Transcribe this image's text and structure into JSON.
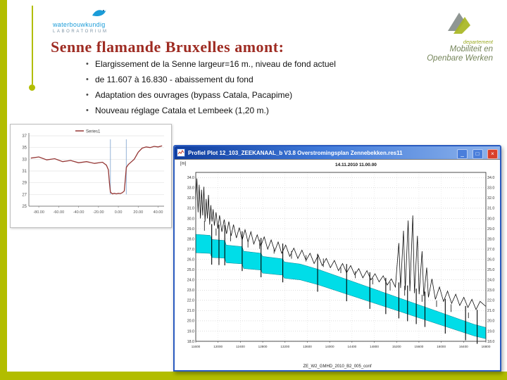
{
  "colors": {
    "accent": "#b2bd00",
    "title_color": "#9e2b22",
    "logo_blue": "#1b9cd8",
    "flem_green": "#9aaa1f",
    "flem_gray": "#75855a"
  },
  "slide": {
    "title": "Senne flamande Bruxelles amont:",
    "bullets": [
      "Elargissement de la Senne largeur=16 m., niveau de fond actuel",
      "de 11.607 à 16.830   - abaissement du fond",
      "Adaptation des ouvrages (bypass Catala, Pacapime)",
      "Nouveau réglage Catala et Lembeek (1,20 m.)"
    ]
  },
  "logos": {
    "left": {
      "line1": "waterbouwkundig",
      "line2": "LABORATORIUM"
    },
    "right": {
      "line1": "departement",
      "line2": "Mobiliteit en",
      "line3": "Openbare Werken"
    }
  },
  "window": {
    "title": "Profiel Plot   12_103_ZEEKANAAL_b V3.8 Overstromingsplan Zennebekken.res11",
    "datetime": "14.11.2010 11.00.00",
    "unit": "[m]",
    "status": "ZE_W2_GMHD_2010_B2_005_conf",
    "buttons": {
      "minimize": "_",
      "maximize": "□",
      "close": "×"
    }
  },
  "chart_data": [
    {
      "id": "cross_section",
      "type": "line",
      "title": "",
      "legend": [
        {
          "label": "Series1",
          "color": "#953735"
        }
      ],
      "xlim": [
        -90,
        46
      ],
      "ylim": [
        25,
        37
      ],
      "x_ticks": [
        -80,
        -60,
        -40,
        -20,
        0,
        20,
        40
      ],
      "x_tick_labels": [
        "-80.00",
        "-60.00",
        "-40.00",
        "-20.00",
        "0.00",
        "20.00",
        "40.00"
      ],
      "y_ticks": [
        25,
        27,
        29,
        31,
        33,
        35,
        37
      ],
      "guides": {
        "color": "#95b3d7",
        "x": [
          -8,
          8
        ],
        "y0": 27,
        "y1": 36.4
      },
      "series": [
        {
          "name": "Series1",
          "color": "#953735",
          "points": [
            [
              -88,
              33.2
            ],
            [
              -80,
              33.4
            ],
            [
              -72,
              32.9
            ],
            [
              -64,
              33.1
            ],
            [
              -56,
              32.6
            ],
            [
              -48,
              32.8
            ],
            [
              -40,
              32.4
            ],
            [
              -32,
              32.6
            ],
            [
              -24,
              32.3
            ],
            [
              -16,
              32.5
            ],
            [
              -12,
              32.0
            ],
            [
              -10,
              31.2
            ],
            [
              -9,
              29.0
            ],
            [
              -8,
              27.4
            ],
            [
              -6,
              27.1
            ],
            [
              -4,
              27.2
            ],
            [
              -2,
              27.1
            ],
            [
              0,
              27.2
            ],
            [
              2,
              27.15
            ],
            [
              4,
              27.3
            ],
            [
              6,
              27.6
            ],
            [
              7,
              29.5
            ],
            [
              8,
              31.6
            ],
            [
              10,
              32.1
            ],
            [
              12,
              32.4
            ],
            [
              16,
              33.0
            ],
            [
              20,
              34.2
            ],
            [
              24,
              34.9
            ],
            [
              28,
              35.1
            ],
            [
              32,
              35.0
            ],
            [
              36,
              35.2
            ],
            [
              40,
              35.1
            ],
            [
              44,
              35.3
            ]
          ]
        }
      ]
    },
    {
      "id": "long_profile",
      "type": "area+line",
      "ylim": [
        18,
        34.5
      ],
      "y_ticks": [
        34,
        33,
        32,
        31,
        30,
        29,
        28,
        27,
        26,
        25,
        24,
        23,
        22,
        21,
        20,
        19,
        18
      ],
      "y_tick_labels": [
        "34.0",
        "33.0",
        "32.0",
        "31.0",
        "30.0",
        "29.0",
        "28.0",
        "27.0",
        "26.0",
        "25.0",
        "24.0",
        "23.0",
        "22.0",
        "21.0",
        "20.0",
        "19.0",
        "18.0"
      ],
      "x_tick_labels": [
        "11600",
        "12000",
        "12400",
        "12800",
        "13200",
        "13600",
        "14000",
        "14400",
        "14800",
        "15200",
        "15600",
        "16000",
        "16400",
        "16800"
      ],
      "band_color": "#00dde8",
      "band_thickness_left": 1.8,
      "band_thickness_right": 1.1,
      "water_top": [
        [
          0.0,
          28.45
        ],
        [
          0.05,
          28.35
        ],
        [
          0.055,
          27.95
        ],
        [
          0.1,
          27.85
        ],
        [
          0.105,
          27.4
        ],
        [
          0.16,
          27.25
        ],
        [
          0.165,
          26.8
        ],
        [
          0.225,
          26.6
        ],
        [
          0.23,
          26.3
        ],
        [
          0.3,
          26.05
        ],
        [
          0.305,
          25.75
        ],
        [
          0.36,
          25.55
        ],
        [
          0.42,
          25.05
        ],
        [
          0.48,
          24.45
        ],
        [
          0.52,
          24.05
        ],
        [
          0.56,
          23.65
        ],
        [
          0.6,
          23.25
        ],
        [
          0.64,
          22.85
        ],
        [
          0.68,
          22.45
        ],
        [
          0.72,
          22.05
        ],
        [
          0.76,
          21.65
        ],
        [
          0.8,
          21.25
        ],
        [
          0.84,
          20.85
        ],
        [
          0.88,
          20.45
        ],
        [
          0.92,
          20.05
        ],
        [
          0.96,
          19.65
        ],
        [
          1.0,
          19.35
        ]
      ],
      "ground": [
        [
          0.0,
          31.8
        ],
        [
          0.004,
          33.9
        ],
        [
          0.008,
          30.6
        ],
        [
          0.012,
          33.3
        ],
        [
          0.016,
          30.0
        ],
        [
          0.02,
          32.8
        ],
        [
          0.024,
          30.3
        ],
        [
          0.028,
          33.1
        ],
        [
          0.032,
          29.7
        ],
        [
          0.036,
          31.9
        ],
        [
          0.04,
          30.0
        ],
        [
          0.044,
          32.3
        ],
        [
          0.048,
          29.4
        ],
        [
          0.052,
          31.3
        ],
        [
          0.056,
          29.7
        ],
        [
          0.06,
          30.9
        ],
        [
          0.064,
          29.3
        ],
        [
          0.07,
          30.6
        ],
        [
          0.076,
          29.0
        ],
        [
          0.082,
          30.3
        ],
        [
          0.09,
          28.7
        ],
        [
          0.098,
          29.9
        ],
        [
          0.106,
          28.5
        ],
        [
          0.114,
          29.7
        ],
        [
          0.122,
          28.3
        ],
        [
          0.13,
          29.4
        ],
        [
          0.14,
          28.1
        ],
        [
          0.15,
          29.1
        ],
        [
          0.16,
          27.9
        ],
        [
          0.17,
          28.9
        ],
        [
          0.18,
          27.7
        ],
        [
          0.19,
          28.7
        ],
        [
          0.2,
          27.5
        ],
        [
          0.212,
          28.4
        ],
        [
          0.224,
          27.3
        ],
        [
          0.236,
          28.2
        ],
        [
          0.248,
          27.0
        ],
        [
          0.26,
          27.9
        ],
        [
          0.272,
          26.8
        ],
        [
          0.284,
          27.7
        ],
        [
          0.296,
          26.6
        ],
        [
          0.31,
          27.4
        ],
        [
          0.324,
          26.3
        ],
        [
          0.338,
          27.1
        ],
        [
          0.352,
          26.1
        ],
        [
          0.366,
          26.9
        ],
        [
          0.38,
          25.9
        ],
        [
          0.394,
          26.6
        ],
        [
          0.408,
          25.6
        ],
        [
          0.422,
          26.4
        ],
        [
          0.436,
          25.4
        ],
        [
          0.45,
          26.1
        ],
        [
          0.464,
          25.2
        ],
        [
          0.478,
          25.9
        ],
        [
          0.492,
          24.9
        ],
        [
          0.506,
          25.6
        ],
        [
          0.52,
          24.7
        ],
        [
          0.534,
          25.4
        ],
        [
          0.548,
          24.5
        ],
        [
          0.562,
          25.1
        ],
        [
          0.576,
          24.2
        ],
        [
          0.59,
          24.9
        ],
        [
          0.604,
          24.0
        ],
        [
          0.618,
          24.6
        ],
        [
          0.632,
          23.8
        ],
        [
          0.646,
          24.4
        ],
        [
          0.66,
          23.5
        ],
        [
          0.674,
          24.1
        ],
        [
          0.688,
          23.3
        ],
        [
          0.7,
          27.6
        ],
        [
          0.706,
          23.2
        ],
        [
          0.716,
          28.8
        ],
        [
          0.722,
          23.0
        ],
        [
          0.732,
          29.8
        ],
        [
          0.738,
          22.9
        ],
        [
          0.748,
          30.3
        ],
        [
          0.754,
          22.7
        ],
        [
          0.764,
          28.3
        ],
        [
          0.77,
          22.6
        ],
        [
          0.78,
          26.8
        ],
        [
          0.786,
          22.4
        ],
        [
          0.796,
          25.2
        ],
        [
          0.802,
          22.3
        ],
        [
          0.814,
          24.1
        ],
        [
          0.826,
          22.1
        ],
        [
          0.84,
          23.3
        ],
        [
          0.854,
          21.9
        ],
        [
          0.868,
          22.9
        ],
        [
          0.882,
          21.7
        ],
        [
          0.896,
          22.6
        ],
        [
          0.91,
          21.5
        ],
        [
          0.924,
          22.3
        ],
        [
          0.938,
          21.3
        ],
        [
          0.952,
          22.1
        ],
        [
          0.966,
          21.1
        ],
        [
          0.98,
          21.9
        ],
        [
          1.0,
          21.4
        ]
      ],
      "structures": [
        0.055,
        0.08,
        0.1,
        0.16,
        0.225,
        0.3,
        0.42,
        0.52,
        0.6,
        0.655,
        0.7,
        0.73,
        0.76,
        0.79,
        0.86,
        0.93,
        0.97
      ],
      "annotation_marks": [
        [
          0.03,
          14
        ],
        [
          0.07,
          10
        ],
        [
          0.12,
          12
        ],
        [
          0.18,
          9
        ],
        [
          0.22,
          13
        ],
        [
          0.27,
          8
        ],
        [
          0.33,
          11
        ],
        [
          0.38,
          9
        ],
        [
          0.44,
          12
        ],
        [
          0.5,
          8
        ],
        [
          0.55,
          10
        ],
        [
          0.61,
          9
        ],
        [
          0.67,
          12
        ],
        [
          0.72,
          14
        ],
        [
          0.78,
          10
        ],
        [
          0.83,
          9
        ],
        [
          0.88,
          11
        ],
        [
          0.94,
          8
        ]
      ]
    }
  ]
}
